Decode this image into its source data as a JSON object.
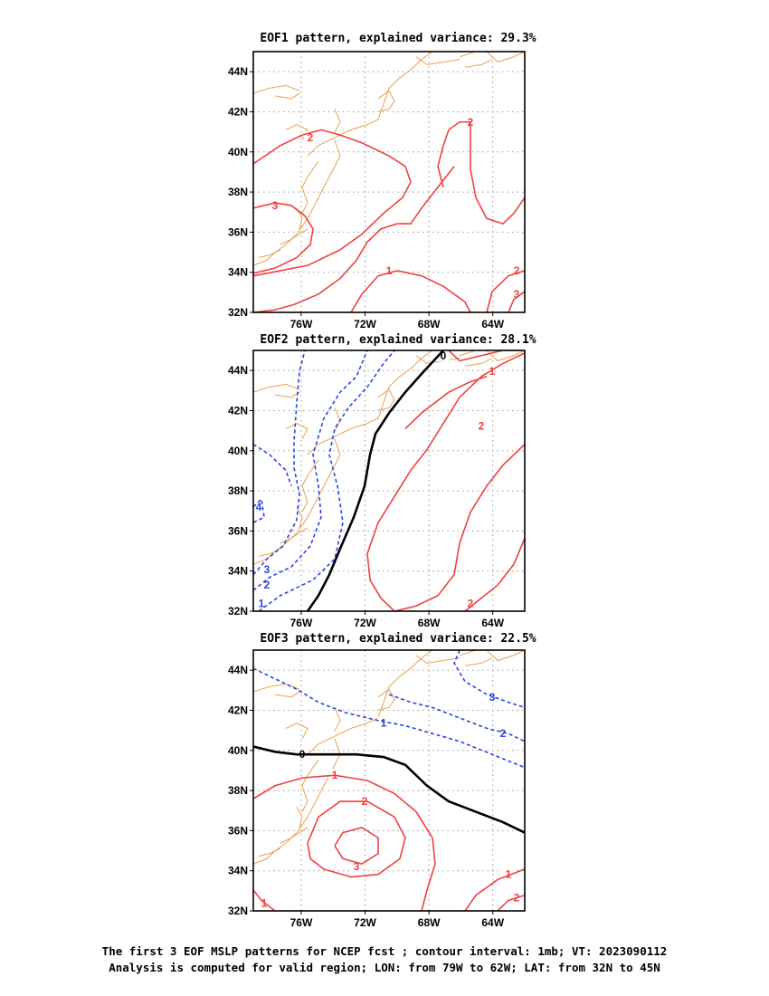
{
  "caption": {
    "line1": "The first 3 EOF MSLP patterns for NCEP fcst ; contour interval: 1mb; VT: 2023090112",
    "line2": "Analysis is computed for valid region; LON: from 79W to 62W; LAT: from 32N to 45N"
  },
  "colors": {
    "positive": "#f04040",
    "negative": "#2a44e8",
    "zero": "#000000",
    "coast": "#e8a050",
    "grid": "#999999"
  },
  "chart_data": [
    {
      "type": "contour",
      "title": "EOF1 pattern, explained variance: 29.3%",
      "xlim": [
        -79,
        -62
      ],
      "ylim": [
        32,
        45
      ],
      "x_ticks": [
        "76W",
        "72W",
        "68W",
        "64W"
      ],
      "y_ticks": [
        "32N",
        "34N",
        "36N",
        "38N",
        "40N",
        "42N",
        "44N"
      ],
      "contour_labels": [
        "1",
        "2",
        "2",
        "2",
        "3",
        "3"
      ]
    },
    {
      "type": "contour",
      "title": "EOF2 pattern, explained variance: 28.1%",
      "xlim": [
        -79,
        -62
      ],
      "ylim": [
        32,
        45
      ],
      "x_ticks": [
        "76W",
        "72W",
        "68W",
        "64W"
      ],
      "y_ticks": [
        "32N",
        "34N",
        "36N",
        "38N",
        "40N",
        "42N",
        "44N"
      ],
      "contour_labels": [
        "0",
        "1",
        "2",
        "2",
        "-3",
        "-2",
        "-1",
        "-4"
      ]
    },
    {
      "type": "contour",
      "title": "EOF3 pattern, explained variance: 22.5%",
      "xlim": [
        -79,
        -62
      ],
      "ylim": [
        32,
        45
      ],
      "x_ticks": [
        "76W",
        "72W",
        "68W",
        "64W"
      ],
      "y_ticks": [
        "32N",
        "34N",
        "36N",
        "38N",
        "40N",
        "42N",
        "44N"
      ],
      "contour_labels": [
        "0",
        "-1",
        "-2",
        "-3",
        "1",
        "2",
        "3",
        "1",
        "2",
        "1"
      ]
    }
  ]
}
